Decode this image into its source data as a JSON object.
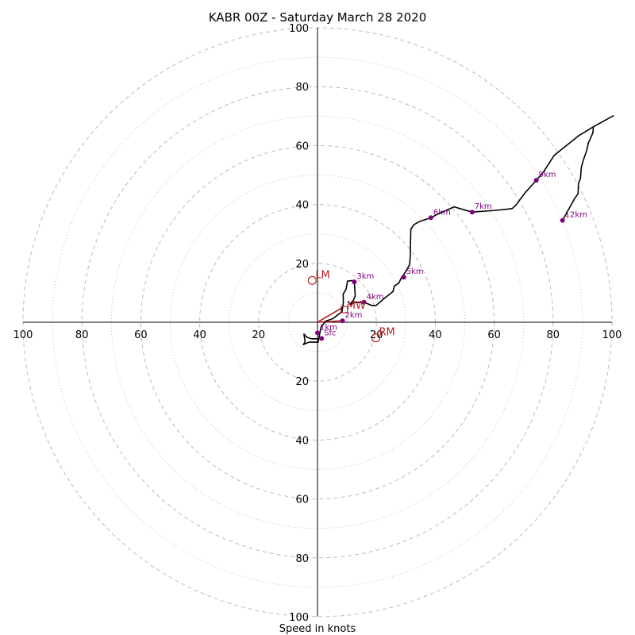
{
  "chart_data": {
    "type": "hodograph",
    "title": "KABR 00Z - Saturday March 28 2020",
    "xlabel": "Speed in knots",
    "xlim": [
      -100,
      100
    ],
    "ylim": [
      -100,
      100
    ],
    "ring_major": [
      20,
      40,
      60,
      80,
      100
    ],
    "ring_minor": [
      10,
      30,
      50,
      70,
      90
    ],
    "tick_labels": [
      "100",
      "80",
      "60",
      "40",
      "20"
    ],
    "grid": true,
    "colors": {
      "profile": "#000000",
      "height_markers": "#800080",
      "motion": "#b22222",
      "ring": "#bbbbbb"
    },
    "profile": {
      "u": [
        1.4,
        -0.6,
        -2.1,
        -3.6,
        -4.6,
        -4.2,
        -4.8,
        -2.8,
        0.2,
        1.2,
        2.8,
        5.2,
        8.3,
        8.8,
        8.7,
        9.7,
        10.2,
        12.4,
        12.5,
        12.8,
        12.2,
        11.0,
        11.4,
        12.6,
        15.8,
        18.5,
        19.9,
        22.9,
        25.6,
        26.1,
        27.6,
        28.6,
        29.7,
        31.3,
        31.5,
        31.6,
        31.7,
        32.7,
        34.6,
        38.5,
        41.2,
        46.4,
        52.5,
        60.5,
        66.1,
        67.3,
        70.5,
        74.5,
        76.9,
        80.4,
        88.6,
        93.7,
        100.6
      ],
      "v": [
        -5.5,
        -5.6,
        -5.6,
        -5.1,
        -4.0,
        -6.6,
        -7.6,
        -6.7,
        -6.8,
        -1.6,
        0.4,
        1.2,
        3.6,
        6.7,
        9.6,
        11.2,
        14.0,
        14.2,
        13.7,
        8.9,
        7.5,
        6.1,
        6.1,
        6.7,
        6.8,
        5.7,
        5.7,
        8.3,
        10.4,
        12.3,
        13.3,
        15.3,
        16.8,
        19.6,
        22.6,
        27.4,
        31.6,
        33.1,
        34.2,
        35.5,
        36.9,
        39.2,
        37.4,
        38.0,
        38.6,
        39.7,
        44.0,
        48.4,
        51.3,
        56.7,
        63.3,
        66.4,
        70.2
      ]
    },
    "upper_branch": {
      "u": [
        93.7,
        93.5,
        92.0,
        91.4,
        90.2,
        89.6,
        89.3,
        88.6,
        88.5,
        87.3,
        83.2
      ],
      "v": [
        66.4,
        64.3,
        60.9,
        58.3,
        54.8,
        52.6,
        48.9,
        47.0,
        43.7,
        42.0,
        34.6
      ]
    },
    "height_markers": [
      {
        "label": "Sfc",
        "u": 1.4,
        "v": -5.5
      },
      {
        "label": "1km",
        "u": 0.0,
        "v": -3.6
      },
      {
        "label": "2km",
        "u": 8.5,
        "v": 0.5
      },
      {
        "label": "3km",
        "u": 12.5,
        "v": 13.7
      },
      {
        "label": "4km",
        "u": 15.8,
        "v": 6.8
      },
      {
        "label": "5km",
        "u": 29.3,
        "v": 15.3
      },
      {
        "label": "6km",
        "u": 38.5,
        "v": 35.5
      },
      {
        "label": "7km",
        "u": 52.5,
        "v": 37.4
      },
      {
        "label": "9km",
        "u": 74.3,
        "v": 48.2
      },
      {
        "label": "12km",
        "u": 83.2,
        "v": 34.6
      }
    ],
    "storm_motion": [
      {
        "label": "LM",
        "u": -1.8,
        "v": 14.2
      },
      {
        "label": "RM",
        "u": 19.8,
        "v": -5.3
      },
      {
        "label": "MW",
        "u": 9.1,
        "v": 4.3
      }
    ],
    "shear_vector": {
      "u": [
        0.0,
        8.5
      ],
      "v": [
        0.0,
        5.0
      ]
    },
    "motion_vector": {
      "u": [
        0.0,
        8.5
      ],
      "v": [
        0.0,
        0.5
      ]
    }
  }
}
